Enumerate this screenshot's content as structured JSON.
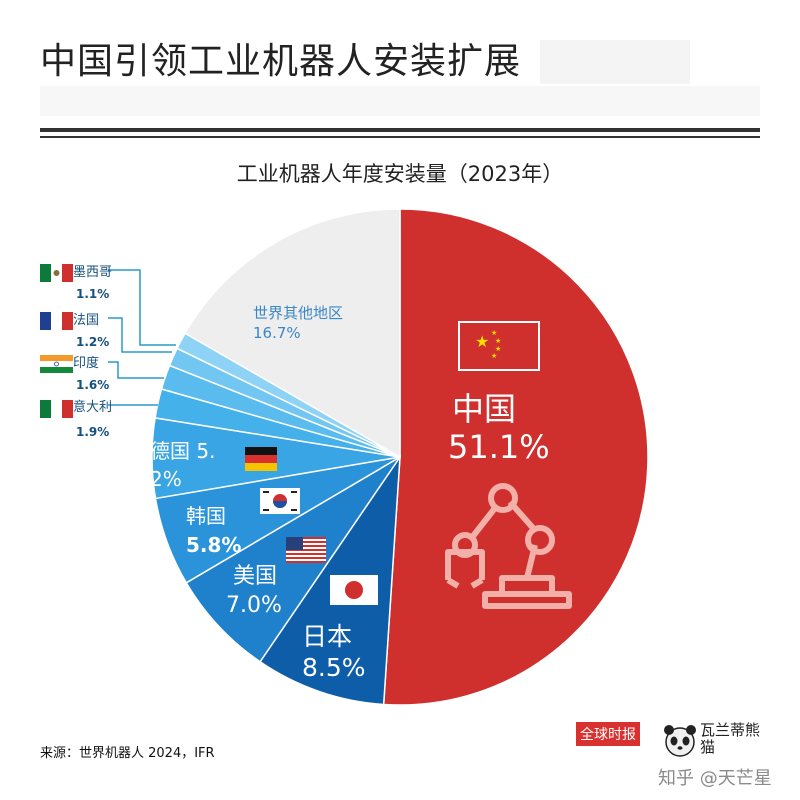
{
  "header": {
    "title": "中国引领工业机器人安装扩展",
    "source": "来源：世界机器人 2024，IFR",
    "brand": "全球时报",
    "logo_text": "瓦兰蒂熊猫",
    "watermark": "知乎 @天芒星"
  },
  "chart_data": {
    "type": "pie",
    "title": "工业机器人年度安装量（2023年）",
    "unit": "%",
    "slices": [
      {
        "label": "中国",
        "value": 51.1,
        "value_text": "51.1%",
        "color": "#cf2f2d"
      },
      {
        "label": "日本",
        "value": 8.5,
        "value_text": "8.5%",
        "color": "#0d5da8"
      },
      {
        "label": "美国",
        "value": 7.0,
        "value_text": "7.0%",
        "color": "#1f80cc"
      },
      {
        "label": "韩国",
        "value": 5.8,
        "value_text": "5.8%",
        "color": "#2a93d9"
      },
      {
        "label": "德国",
        "value": 5.2,
        "value_text": "德国 5.2%",
        "color": "#3aa5e4"
      },
      {
        "label": "意大利",
        "value": 1.9,
        "value_text": "1.9%",
        "color": "#45b1ea"
      },
      {
        "label": "印度",
        "value": 1.6,
        "value_text": "1.6%",
        "color": "#5abcee"
      },
      {
        "label": "法国",
        "value": 1.2,
        "value_text": "1.2%",
        "color": "#72c7f2"
      },
      {
        "label": "墨西哥",
        "value": 1.1,
        "value_text": "1.1%",
        "color": "#8ed3f5"
      },
      {
        "label": "世界其他地区",
        "value": 16.7,
        "value_text": "16.7%",
        "color": "#eeeeee"
      }
    ],
    "inside_labels": {
      "china": {
        "name": "中国",
        "value": "51.1%"
      },
      "japan": {
        "name": "日本",
        "value": "8.5%"
      },
      "usa": {
        "name": "美国",
        "value": "7.0%"
      },
      "korea": {
        "name": "韩国",
        "value": "5.8%"
      },
      "germany_line1": "德国 5.",
      "germany_line2": "2%",
      "rest": {
        "name": "世界其他地区",
        "value": "16.7%"
      }
    },
    "callouts": [
      {
        "name": "墨西哥",
        "value": "1.1%"
      },
      {
        "name": "法国",
        "value": "1.2%"
      },
      {
        "name": "印度",
        "value": "1.6%"
      },
      {
        "name": "意大利",
        "value": "1.9%"
      }
    ]
  }
}
